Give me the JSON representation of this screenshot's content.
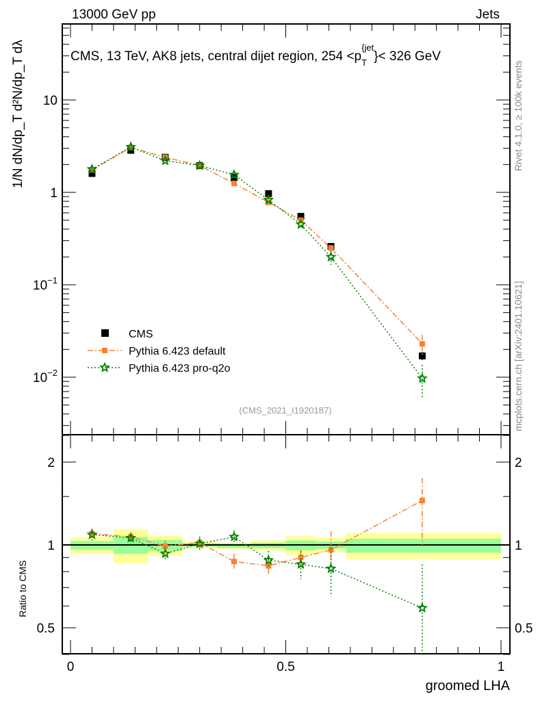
{
  "header": {
    "left": "13000 GeV pp",
    "right": "Jets"
  },
  "side_text": {
    "rivet": "Rivet 4.1.0, ≥ 100k events",
    "mcplots": "mcplots.cern.ch [arXiv:2401.10621]"
  },
  "chart_data": [
    {
      "type": "scatter",
      "title": "CMS, 13 TeV, AK8 jets, central dijet region, 254 <p",
      "title_sub": "T",
      "title_sup": "{jet",
      "title_end": "}< 326 GeV",
      "ylabel": "1/N dN/dp_T d²N/dp_T dλ",
      "yscale": "log",
      "ylim": [
        0.0024,
        66
      ],
      "xlim": [
        -0.02,
        1.02
      ],
      "yticks": [
        {
          "v": 0.01,
          "base": "10",
          "exp": "−2"
        },
        {
          "v": 0.1,
          "base": "10",
          "exp": "−1"
        },
        {
          "v": 1,
          "base": "1",
          "exp": ""
        },
        {
          "v": 10,
          "base": "10",
          "exp": ""
        }
      ],
      "annotation": "(CMS_2021_I1920187)",
      "legend_position": "bottom-left",
      "x": [
        0.05,
        0.14,
        0.22,
        0.3,
        0.38,
        0.46,
        0.535,
        0.605,
        0.817
      ],
      "series": [
        {
          "name": "CMS",
          "color": "#000000",
          "marker": "square",
          "values": [
            1.6,
            2.85,
            2.4,
            1.95,
            1.45,
            0.97,
            0.55,
            0.26,
            0.017
          ],
          "rel_err": [
            0.03,
            0.05,
            0.04,
            0.02,
            0.02,
            0.03,
            0.05,
            0.05,
            0.1
          ]
        },
        {
          "name": "Pythia 6.423 default",
          "color": "#f58231",
          "marker": "square-small",
          "line": "dashdot",
          "values": [
            1.75,
            3.05,
            2.4,
            1.95,
            1.25,
            0.78,
            0.5,
            0.25,
            0.023
          ],
          "rel_err": [
            0.02,
            0.02,
            0.02,
            0.02,
            0.03,
            0.04,
            0.05,
            0.08,
            0.25
          ]
        },
        {
          "name": "Pythia 6.423 pro-q2o",
          "color": "#008000",
          "marker": "star",
          "line": "dotted",
          "values": [
            1.78,
            3.1,
            2.2,
            1.95,
            1.55,
            0.83,
            0.45,
            0.2,
            0.0097
          ],
          "rel_err": [
            0.02,
            0.02,
            0.02,
            0.02,
            0.03,
            0.05,
            0.08,
            0.18,
            0.4
          ]
        }
      ]
    },
    {
      "type": "line",
      "ylabel": "Ratio to CMS",
      "xlabel": "groomed LHA",
      "yscale": "log",
      "ylim": [
        0.4,
        2.5
      ],
      "xlim": [
        -0.02,
        1.02
      ],
      "yticks": [
        {
          "v": 0.5,
          "label": "0.5"
        },
        {
          "v": 1,
          "label": "1"
        },
        {
          "v": 2,
          "label": "2"
        }
      ],
      "xticks": [
        {
          "v": 0,
          "label": "0"
        },
        {
          "v": 0.5,
          "label": "0.5"
        },
        {
          "v": 1,
          "label": "1"
        }
      ],
      "bin_edges": [
        0,
        0.1,
        0.18,
        0.26,
        0.34,
        0.42,
        0.5,
        0.57,
        0.64,
        1.0
      ],
      "band_yellow": [
        [
          0.927,
          1.069
        ],
        [
          0.858,
          1.139
        ],
        [
          0.912,
          1.081
        ],
        [
          0.972,
          1.029
        ],
        [
          0.966,
          1.019
        ],
        [
          0.953,
          1.039
        ],
        [
          0.92,
          1.075
        ],
        [
          0.94,
          1.059
        ],
        [
          0.889,
          1.106
        ]
      ],
      "band_green": [
        [
          0.962,
          1.033
        ],
        [
          0.927,
          1.069
        ],
        [
          0.953,
          1.041
        ],
        [
          0.985,
          1.015
        ],
        [
          0.975,
          1.01
        ],
        [
          0.972,
          1.019
        ],
        [
          0.957,
          1.037
        ],
        [
          0.968,
          1.029
        ],
        [
          0.937,
          1.053
        ]
      ],
      "x": [
        0.05,
        0.14,
        0.22,
        0.3,
        0.38,
        0.46,
        0.535,
        0.605,
        0.817
      ],
      "series": [
        {
          "name": "Pythia 6.423 default",
          "color": "#f58231",
          "values": [
            1.1,
            1.07,
            0.99,
            1.02,
            0.87,
            0.84,
            0.9,
            0.96,
            1.45
          ],
          "err_lo": [
            1.04,
            1.02,
            0.95,
            0.97,
            0.82,
            0.78,
            0.83,
            0.83,
            1.0
          ],
          "err_hi": [
            1.15,
            1.11,
            1.04,
            1.08,
            0.93,
            0.9,
            0.96,
            1.12,
            1.75
          ]
        },
        {
          "name": "Pythia 6.423 pro-q2o",
          "color": "#008000",
          "values": [
            1.09,
            1.06,
            0.93,
            1.01,
            1.07,
            0.88,
            0.85,
            0.82,
            0.59
          ],
          "err_lo": [
            1.04,
            1.0,
            0.88,
            0.96,
            1.0,
            0.82,
            0.75,
            0.65,
            0.38
          ],
          "err_hi": [
            1.14,
            1.1,
            0.98,
            1.06,
            1.13,
            0.95,
            0.95,
            1.0,
            0.85
          ]
        }
      ]
    }
  ]
}
